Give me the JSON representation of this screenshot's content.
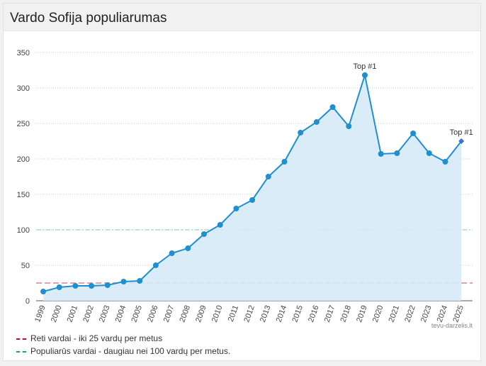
{
  "page": {
    "title": "Vardo Sofija populiarumas"
  },
  "chart_data": {
    "type": "area",
    "x": [
      "1999",
      "2000",
      "2001",
      "2002",
      "2003",
      "2004",
      "2005",
      "2006",
      "2007",
      "2008",
      "2009",
      "2010",
      "2011",
      "2012",
      "2013",
      "2014",
      "2015",
      "2016",
      "2017",
      "2018",
      "2019",
      "2020",
      "2021",
      "2022",
      "2023",
      "2024",
      "2025"
    ],
    "series": [
      {
        "values": [
          13,
          19,
          21,
          21,
          22,
          27,
          28,
          50,
          67,
          74,
          94,
          107,
          130,
          142,
          175,
          196,
          237,
          252,
          273,
          246,
          318,
          207,
          208,
          236,
          208,
          196,
          225
        ]
      }
    ],
    "ylim": [
      0,
      350
    ],
    "yticks": [
      0,
      50,
      100,
      150,
      200,
      250,
      300,
      350
    ],
    "grid": true,
    "thresholds": [
      {
        "label": "Reti vardai - iki 25 vardų per metus",
        "value": 25,
        "color": "#e8a0a8",
        "legend_color": "#cc0033"
      },
      {
        "label": "Populiarūs vardai - daugiau nei 100 vardų per metus.",
        "value": 100,
        "color": "#a8dcc8",
        "legend_color": "#22aa44"
      }
    ],
    "annotations": [
      {
        "x": "2019",
        "text": "Top #1"
      },
      {
        "x": "2025",
        "text": "Top #1"
      }
    ],
    "watermark": "tevu-darzelis.lt",
    "colors": {
      "line": "#1f8fcf",
      "fill": "#d6eaf7",
      "grid": "#c8c8c8",
      "axis": "#555555"
    }
  }
}
